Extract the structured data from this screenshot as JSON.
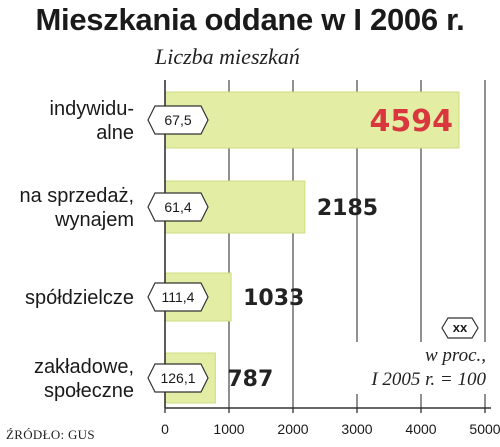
{
  "chart_data": {
    "type": "bar",
    "orientation": "horizontal",
    "title": "Mieszkania oddane w I 2006 r.",
    "subtitle": "Liczba mieszkań",
    "categories": [
      [
        "indywidu-",
        "alne"
      ],
      [
        "na sprzedaż,",
        "wynajem"
      ],
      [
        "spółdzielcze"
      ],
      [
        "zakładowe,",
        "społeczne"
      ]
    ],
    "values": [
      4594,
      2185,
      1033,
      787
    ],
    "value_labels": [
      "4594",
      "2185",
      "1033",
      "787"
    ],
    "percent_labels": [
      "67,5",
      "61,4",
      "111,4",
      "126,1"
    ],
    "highlight_index": 0,
    "xlim": [
      0,
      5000
    ],
    "xticks": [
      "0",
      "1000",
      "2000",
      "3000",
      "4000",
      "5000"
    ],
    "grid": true,
    "legend": {
      "box_text": "xx",
      "lines": [
        "w proc.,",
        "I 2005 r. = 100"
      ],
      "placement": "bottom-right"
    },
    "colors": {
      "bar": "#e3eda3",
      "bar_stroke": "#cfdc83",
      "highlight_value": "#d9363e",
      "axis": "#333333"
    }
  },
  "source": "ŹRÓDŁO: GUS"
}
